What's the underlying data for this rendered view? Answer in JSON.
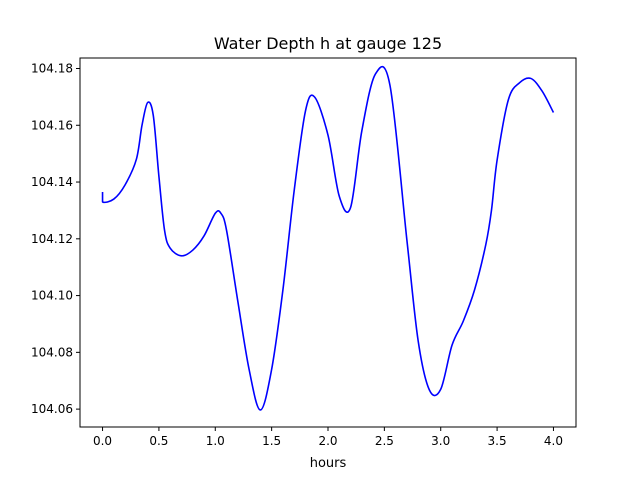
{
  "chart_data": {
    "type": "line",
    "title": "Water Depth h at gauge 125",
    "xlabel": "hours",
    "ylabel": "",
    "xlim": [
      -0.2,
      4.2
    ],
    "ylim": [
      104.0537,
      104.1837
    ],
    "xticks": [
      0.0,
      0.5,
      1.0,
      1.5,
      2.0,
      2.5,
      3.0,
      3.5,
      4.0
    ],
    "xtick_labels": [
      "0.0",
      "0.5",
      "1.0",
      "1.5",
      "2.0",
      "2.5",
      "3.0",
      "3.5",
      "4.0"
    ],
    "yticks": [
      104.06,
      104.08,
      104.1,
      104.12,
      104.14,
      104.16,
      104.18
    ],
    "ytick_labels": [
      "104.06",
      "104.08",
      "104.10",
      "104.12",
      "104.14",
      "104.16",
      "104.18"
    ],
    "grid": false,
    "series": [
      {
        "name": "h",
        "color": "#0000ff",
        "x": [
          0.0,
          0.0,
          0.1,
          0.2,
          0.3,
          0.35,
          0.4,
          0.45,
          0.5,
          0.55,
          0.6,
          0.7,
          0.8,
          0.9,
          1.0,
          1.05,
          1.1,
          1.2,
          1.3,
          1.4,
          1.5,
          1.6,
          1.7,
          1.8,
          1.88,
          2.0,
          2.1,
          2.2,
          2.3,
          2.42,
          2.55,
          2.7,
          2.8,
          2.9,
          3.0,
          3.1,
          3.2,
          3.3,
          3.4,
          3.45,
          3.5,
          3.6,
          3.7,
          3.8,
          3.9,
          4.0
        ],
        "y": [
          104.1365,
          104.133,
          104.134,
          104.139,
          104.148,
          104.16,
          104.168,
          104.1635,
          104.142,
          104.123,
          104.1167,
          104.114,
          104.116,
          104.121,
          104.129,
          104.129,
          104.123,
          104.098,
          104.074,
          104.0597,
          104.074,
          104.102,
          104.137,
          104.165,
          104.17,
          104.1565,
          104.135,
          104.131,
          104.158,
          104.178,
          104.174,
          104.1195,
          104.084,
          104.0667,
          104.067,
          104.0825,
          104.091,
          104.102,
          104.118,
          104.13,
          104.1477,
          104.169,
          104.175,
          104.1765,
          104.172,
          104.1645
        ]
      }
    ]
  }
}
